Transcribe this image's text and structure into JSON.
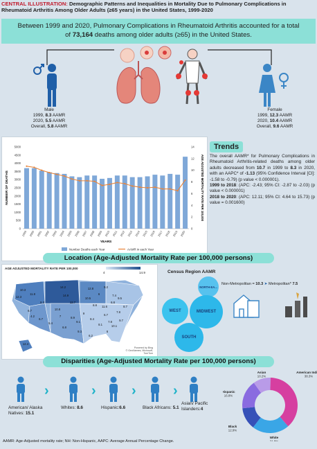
{
  "header": {
    "label": "CENTRAL ILLUSTRATION:",
    "title": "Demographic Patterns and Inequalities in Mortality Due to Pulmonary Complications in Rheumatoid Arthritis Among Older Adults (≥65 years) in the United States, 1999-2020"
  },
  "banner": {
    "line1": "Between 1999 and 2020, Pulmonary Complications in Rheumatoid Arthritis accounted for a total",
    "line2_pre": "of ",
    "line2_bold": "73,164",
    "line2_post": " deaths among older adults (≥65) in the United States."
  },
  "male": {
    "label": "Male",
    "y1999_pre": "1999, ",
    "y1999_val": "8.3",
    "y2020_pre": "2020, ",
    "y2020_val": "5.5",
    "overall_pre": "Overall, ",
    "overall_val": "5.8",
    "unit": " AAMR"
  },
  "female": {
    "label": "Female",
    "y1999_pre": "1999, ",
    "y1999_val": "12.3",
    "y2020_pre": "2020, ",
    "y2020_val": "10.4",
    "overall_pre": "Overall, ",
    "overall_val": "9.6",
    "unit": " AAMR"
  },
  "colors": {
    "bar": "#7fa8d8",
    "line": "#e8843a",
    "accent": "#8ce0d7",
    "male": "#1f5fa8",
    "female": "#3b86c6"
  },
  "chart_data": {
    "type": "bar",
    "categories": [
      "1999",
      "2000",
      "2001",
      "2002",
      "2003",
      "2004",
      "2005",
      "2006",
      "2007",
      "2008",
      "2009",
      "2010",
      "2011",
      "2012",
      "2013",
      "2014",
      "2015",
      "2016",
      "2017",
      "2018",
      "2019",
      "2020"
    ],
    "series": [
      {
        "name": "Number Deaths each Year",
        "kind": "bar",
        "axis": "left",
        "values": [
          3700,
          3700,
          3550,
          3450,
          3400,
          3350,
          3200,
          3150,
          3250,
          3250,
          3050,
          3100,
          3250,
          3250,
          3150,
          3150,
          3200,
          3300,
          3250,
          3350,
          3300,
          4400
        ]
      },
      {
        "name": "AAMR in each Year",
        "kind": "line",
        "axis": "right",
        "values": [
          10.7,
          10.5,
          10.0,
          9.6,
          9.3,
          9.0,
          8.5,
          8.2,
          8.2,
          8.1,
          7.4,
          7.6,
          7.9,
          7.7,
          7.3,
          7.1,
          7.0,
          7.1,
          6.8,
          6.8,
          6.5,
          8.3
        ]
      }
    ],
    "xlabel": "YEARS",
    "ylabel": "NUMBER OF DEATHS",
    "y2label": "AGE ADJUSTED MORTALITY RATE PER 100,000",
    "ylim": [
      0,
      5000
    ],
    "y2lim": [
      0,
      14
    ],
    "yticks": [
      "0",
      "500",
      "1000",
      "1500",
      "2000",
      "2500",
      "3000",
      "3500",
      "4000",
      "4500",
      "5000"
    ],
    "y2ticks": [
      "0",
      "2",
      "4",
      "6",
      "8",
      "10",
      "12",
      "14"
    ],
    "legend_position": "bottom",
    "grid": false
  },
  "trends": {
    "title": "Trends",
    "p1": "The overall AAMR* for Pulmonary Complications in Rheumatoid Arthritis-related deaths among older adults decreased from ",
    "p1_b1": "10.7",
    "p1_mid": " in 1999 to ",
    "p1_b2": "8.3",
    "p1_mid2": " in 2020, with an AAPC* of ",
    "p1_b3": "-1.13",
    "p1_end": " (95% Confidence Interval [CI]: -1.58 to -0.79) (p value < 0.000001).",
    "p2_b": "1999 to 2018",
    "p2": ": (APC: -2.43; 95% CI: -2.87 to -2.03) (p value < 0.000001)",
    "p3_b": "2018 to 2020",
    "p3": ": (APC: 12.11; 95% CI: 4.64 to 15.73) (p value = 0.001600)"
  },
  "location": {
    "title": "Location (Age-Adjusted Mortality Rate per 100,000 persons)",
    "map_title": "AGE ADJUSTED MORTALITY RATE PER 100,000",
    "legend_min": "4",
    "legend_max": "14.9",
    "credit1": "Powered by Bing",
    "credit2": "© GeoNames, Microsoft, TomTom",
    "state_values": [
      "10.3",
      "12.3",
      "11.8",
      "14.2",
      "12.8",
      "9.2",
      "14.9",
      "6.7",
      "8.3",
      "10.8",
      "12.7",
      "10.5",
      "6",
      "7.4",
      "8.8",
      "11.6",
      "6.8",
      "9.5",
      "8.7",
      "6.7",
      "7.8",
      "9",
      "8.4",
      "9.7",
      "7.8",
      "10.1",
      "8.9",
      "7",
      "9.1",
      "8.1",
      "6",
      "9.3",
      "6.2",
      "5.4",
      "6.7",
      "4.2",
      "6.8",
      "12.4"
    ],
    "census_title": "Census Region AAMR",
    "regions": {
      "northeast": "NORTH-EA...",
      "west": "WEST",
      "midwest": "MIDWEST",
      "south": "SOUTH"
    },
    "nonmetro_label": "Non-Metropolitan = ",
    "nonmetro_val": "10.3",
    "metro_label": "Metropolitan* ",
    "metro_val": "7.5"
  },
  "disparities": {
    "title": "Disparities (Age-Adjusted Mortality Rate per 100,000 persons)",
    "groups": [
      {
        "label": "American/ Alaska Natives: ",
        "value": "15.1"
      },
      {
        "label": "Whites: ",
        "value": "8.6"
      },
      {
        "label": "Hispanic:",
        "value": "6.6"
      },
      {
        "label": "Black Africans: ",
        "value": "5.1"
      },
      {
        "label": "Asian/ Pacific Islanders:",
        "value": "4"
      }
    ],
    "donut": [
      {
        "name": "American Indian",
        "pct": "38.3%",
        "value": 38.3,
        "color": "#d63fa0"
      },
      {
        "name": "White",
        "pct": "21.8%",
        "value": 21.8,
        "color": "#3aa6e6"
      },
      {
        "name": "Black",
        "pct": "12.9%",
        "value": 12.9,
        "color": "#3651b8"
      },
      {
        "name": "Hispanic",
        "pct": "16.8%",
        "value": 16.8,
        "color": "#8a6be0"
      },
      {
        "name": "Asian",
        "pct": "10.2%",
        "value": 10.2,
        "color": "#b99be8"
      }
    ]
  },
  "footnote": "AAMR: Age-Adjusted mortality rate; NH: Non-Hispanic, AAPC: Average Annual Percentage Change."
}
